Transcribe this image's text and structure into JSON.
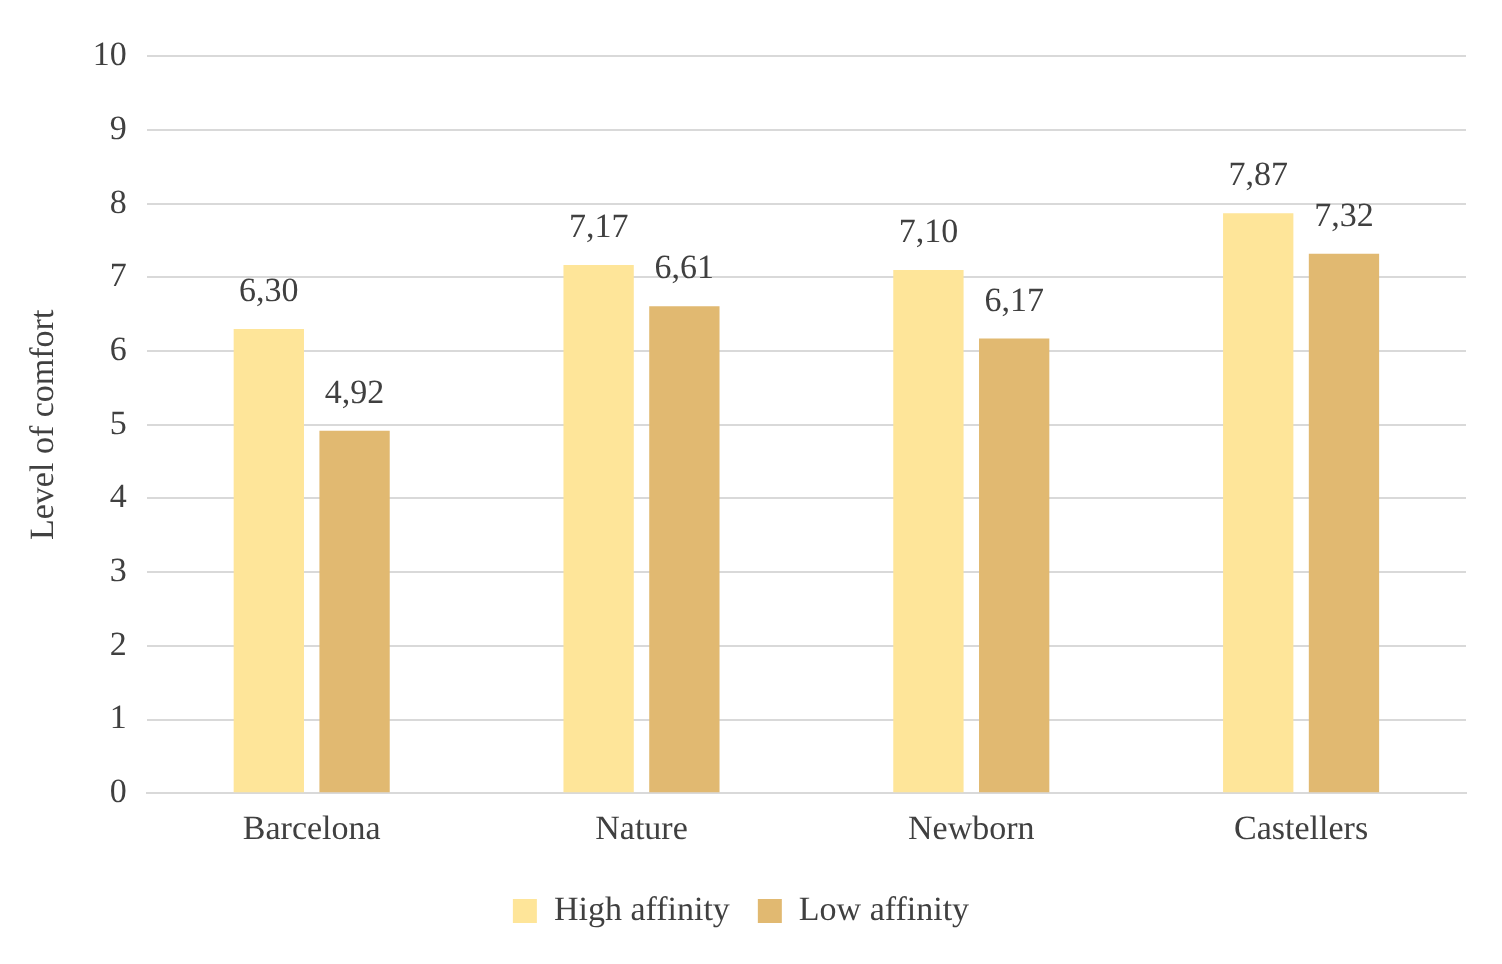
{
  "chart_data": {
    "type": "bar",
    "ylabel": "Level of comfort",
    "categories": [
      "Barcelona",
      "Nature",
      "Newborn",
      "Castellers"
    ],
    "series": [
      {
        "name": "High affinity",
        "color": "#fee599",
        "values": [
          6.3,
          7.17,
          7.1,
          7.87
        ],
        "value_labels": [
          "6,30",
          "7,17",
          "7,10",
          "7,87"
        ]
      },
      {
        "name": "Low affinity",
        "color": "#e1b971",
        "values": [
          4.92,
          6.61,
          6.17,
          7.32
        ],
        "value_labels": [
          "4,92",
          "6,61",
          "6,17",
          "7,32"
        ]
      }
    ],
    "ylim": [
      0,
      10
    ],
    "yticks": [
      0,
      1,
      2,
      3,
      4,
      5,
      6,
      7,
      8,
      9,
      10
    ],
    "grid": "y",
    "legend": "bottom"
  }
}
